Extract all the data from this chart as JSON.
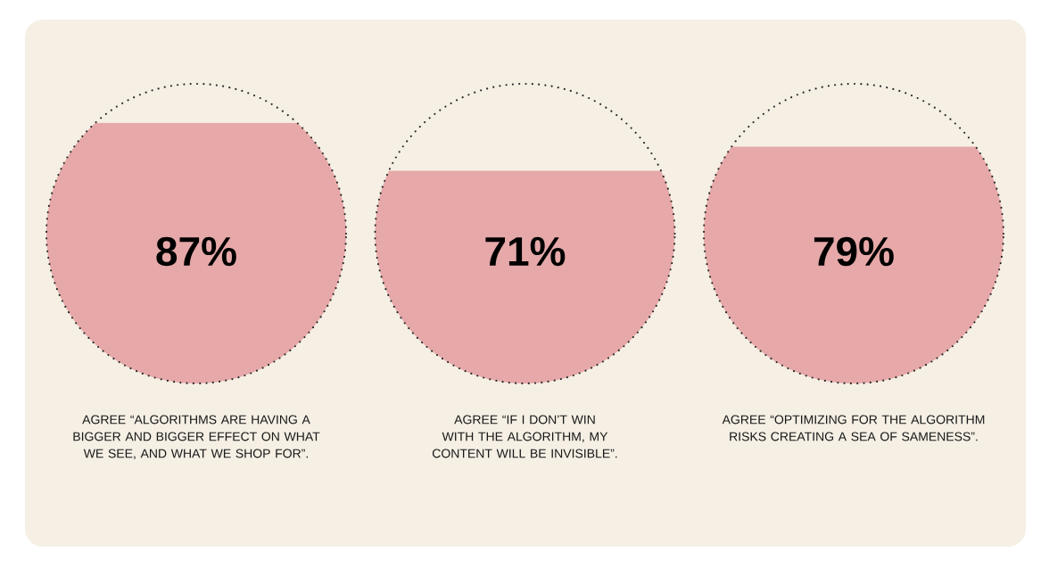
{
  "chart_data": {
    "type": "other",
    "categories": [
      "AGREE “ALGORITHMS ARE HAVING A BIGGER AND BIGGER EFFECT ON WHAT WE SEE, AND WHAT WE SHOP FOR”.",
      "AGREE “IF I DON’T WIN WITH THE ALGORITHM, MY CONTENT WILL BE INVISIBLE”.",
      "AGREE “OPTIMIZING FOR THE ALGORITHM RISKS CREATING A SEA OF SAMENESS”."
    ],
    "values": [
      87,
      71,
      79
    ],
    "value_labels": [
      "87%",
      "71%",
      "79%"
    ],
    "colors": [
      "#e6a8a8",
      "#e6a8a8",
      "#e6a8a8"
    ]
  }
}
